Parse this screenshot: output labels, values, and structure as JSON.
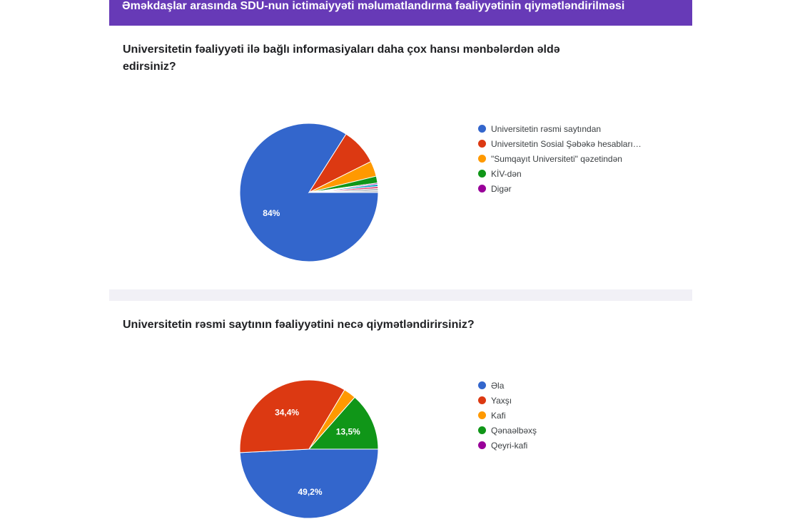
{
  "form": {
    "title": "Əməkdaşlar arasında SDU-nun ictimaiyyəti məlumatlandırma fəaliyyətinin qiymətləndirilməsi"
  },
  "chart_data": [
    {
      "type": "pie",
      "title": "Universitetin fəaliyyəti ilə bağlı informasiyaları daha çox hansı mənbələrdən əldə edirsiniz?",
      "categories": [
        "Universitetin rəsmi saytından",
        "Universitetin Sosial Şəbəkə hesabları…",
        "\"Sumqayıt Universiteti\" qəzetindən",
        "KİV-dən",
        "Digər"
      ],
      "values": [
        84,
        8.6,
        3.6,
        1.6,
        0.3
      ],
      "other_slices": [
        0.5,
        0.5,
        0.5,
        0.4
      ],
      "slice_labels": [
        "84%",
        "",
        "",
        "",
        ""
      ],
      "colors": [
        "#3366cc",
        "#dc3912",
        "#ff9900",
        "#109618",
        "#990099"
      ],
      "other_colors": [
        "#0099c6",
        "#dd4477",
        "#aab2b8",
        "#b8bec4"
      ],
      "legend": "right"
    },
    {
      "type": "pie",
      "title": "Universitetin rəsmi saytının fəaliyyətini necə qiymətləndirirsiniz?",
      "categories": [
        "Əla",
        "Yaxşı",
        "Kafi",
        "Qənaəlbəxş",
        "Qeyri-kafi"
      ],
      "values": [
        49.2,
        34.4,
        2.9,
        13.5,
        0
      ],
      "slice_labels": [
        "49,2%",
        "34,4%",
        "",
        "13,5%",
        ""
      ],
      "colors": [
        "#3366cc",
        "#dc3912",
        "#ff9900",
        "#109618",
        "#990099"
      ],
      "legend": "right"
    }
  ]
}
